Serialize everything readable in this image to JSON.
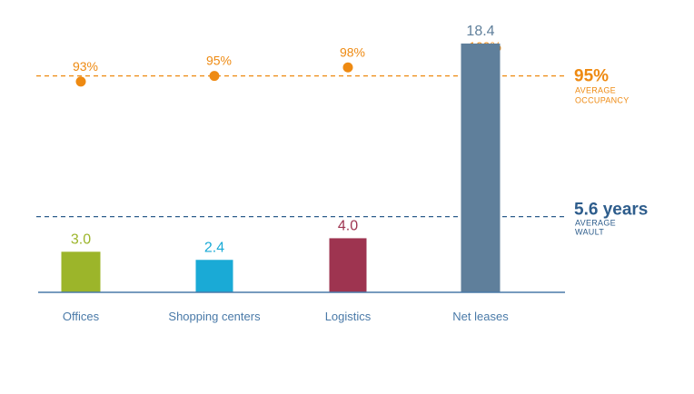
{
  "chart_data": {
    "type": "bar",
    "categories": [
      "Offices",
      "Shopping centers",
      "Logistics",
      "Net leases"
    ],
    "series": [
      {
        "values": [
          3.0,
          2.4,
          4.0,
          18.4
        ],
        "value_labels": [
          "3.0",
          "2.4",
          "4.0",
          "18.4"
        ]
      },
      {
        "values": [
          93,
          95,
          98,
          100
        ],
        "value_labels": [
          "93%",
          "95%",
          "98%",
          "100%"
        ]
      }
    ],
    "bar_colors": [
      "#9cb52a",
      "#1aaad6",
      "#9e3450",
      "#5f7f9b"
    ],
    "bar_ylim": [
      0,
      19
    ],
    "occupancy_ylim": [
      92,
      100
    ],
    "occupancy_color": "#ee8a12",
    "reference_lines": {
      "occupancy": {
        "value": 95,
        "label": "95%",
        "sublabel_1": "AVERAGE",
        "sublabel_2": "OCCUPANCY",
        "color": "#ee8a12"
      },
      "wault": {
        "value": 5.6,
        "label": "5.6 years",
        "sublabel_1": "AVERAGE",
        "sublabel_2": "WAULT",
        "color": "#2e5d8c"
      }
    },
    "axis_color": "#4a7aa8",
    "category_label_color": "#4a7aa8",
    "grid": false,
    "legend": "none"
  }
}
